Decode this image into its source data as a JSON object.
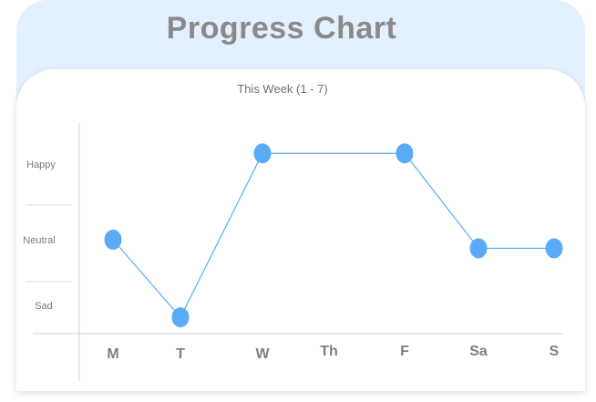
{
  "header": {
    "title": "Progress Chart"
  },
  "chart_data": {
    "type": "line",
    "title": "Progress Chart",
    "subtitle": "This Week (1 - 7)",
    "categories": [
      "M",
      "T",
      "W",
      "Th",
      "F",
      "Sa",
      "S"
    ],
    "y_categories": [
      "Sad",
      "Neutral",
      "Happy"
    ],
    "values": [
      1.8,
      0.9,
      2.8,
      null,
      2.8,
      1.7,
      1.7
    ],
    "ylim": [
      0.5,
      3.5
    ],
    "xlabel": "",
    "ylabel": "",
    "line_color": "#5aabf7",
    "marker_color": "#5aabf7",
    "grid": false,
    "legend": "none"
  }
}
